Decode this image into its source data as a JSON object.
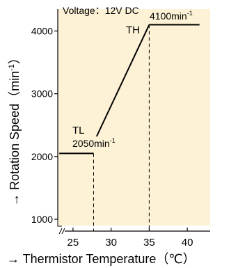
{
  "chart_data": {
    "type": "line",
    "note": "Voltage：12V DC",
    "xlabel": "→ Thermistor Temperature（℃）",
    "ylabel": "→ Rotation Speed（min",
    "ylabel_sup": "-1",
    "ylabel_close": "）",
    "xlim": [
      23,
      43
    ],
    "ylim": [
      900,
      4350
    ],
    "xticks": [
      25,
      30,
      35,
      40
    ],
    "yticks": [
      1000,
      2000,
      3000,
      4000
    ],
    "series": [
      {
        "segments": [
          {
            "x": [
              23.2,
              27.7
            ],
            "y": [
              2050,
              2050
            ]
          },
          {
            "x": [
              28.1,
              35.0
            ],
            "y": [
              2320,
              4100
            ]
          },
          {
            "x": [
              35.0,
              41.6
            ],
            "y": [
              4100,
              4100
            ]
          }
        ]
      }
    ],
    "dashed_lines": [
      {
        "x": 27.7,
        "y_from": 900,
        "y_to": 2050
      },
      {
        "x": 35.0,
        "y_from": 900,
        "y_to": 4100
      }
    ],
    "annotations": {
      "tl": "TL",
      "tl_value": "2050min",
      "th": "TH",
      "th_value": "4100min",
      "sup": "-1"
    },
    "colors": {
      "plot_bg": "#fdf2d6",
      "line": "#000000"
    },
    "grid": false
  }
}
